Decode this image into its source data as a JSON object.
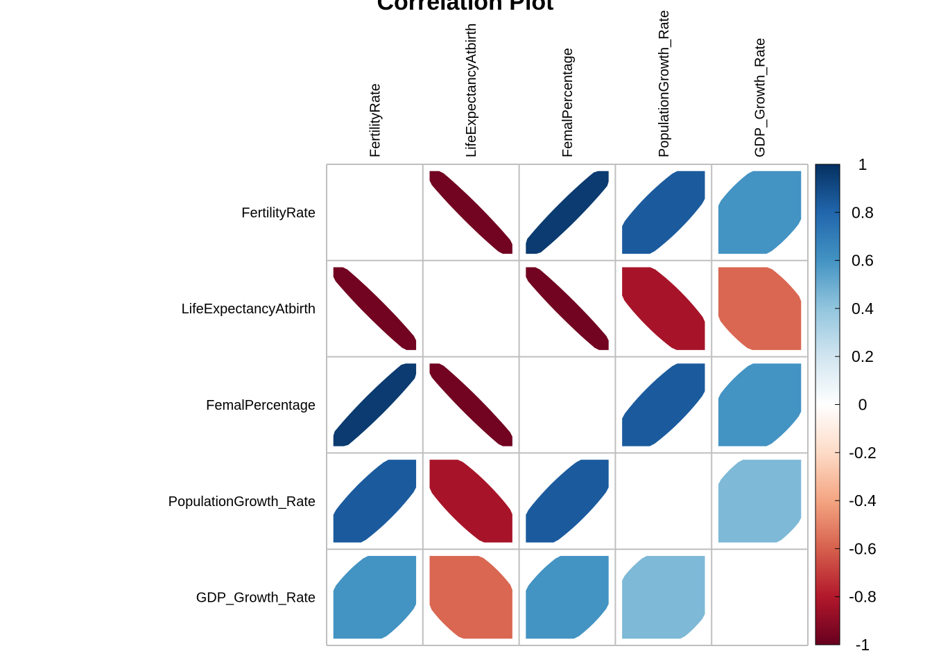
{
  "chart_data": {
    "type": "heatmap",
    "subtype": "correlation-ellipse",
    "title": "Correlation Plot",
    "variables": [
      "FertilityRate",
      "LifeExpectancyAtbirth",
      "FemalPercentage",
      "PopulationGrowth_Rate",
      "GDP_Growth_Rate"
    ],
    "matrix": [
      [
        1.0,
        -0.97,
        0.96,
        0.84,
        0.6
      ],
      [
        -0.97,
        1.0,
        -0.97,
        -0.83,
        -0.58
      ],
      [
        0.96,
        -0.97,
        1.0,
        0.84,
        0.6
      ],
      [
        0.84,
        -0.83,
        0.84,
        1.0,
        0.45
      ],
      [
        0.6,
        -0.58,
        0.6,
        0.45,
        1.0
      ]
    ],
    "show_diagonal": false,
    "colorbar": {
      "range": [
        -1,
        1
      ],
      "ticks": [
        "1",
        "0.8",
        "0.6",
        "0.4",
        "0.2",
        "0",
        "-0.2",
        "-0.4",
        "-0.6",
        "-0.8",
        "-1"
      ]
    },
    "colors": {
      "neg_strong": "#67001f",
      "neg_mid": "#d6604d",
      "neutral": "#ffffff",
      "pos_mid": "#4393c3",
      "pos_strong": "#053061",
      "grid": "#bfbfbf"
    },
    "grid": true,
    "legend_position": "right"
  }
}
